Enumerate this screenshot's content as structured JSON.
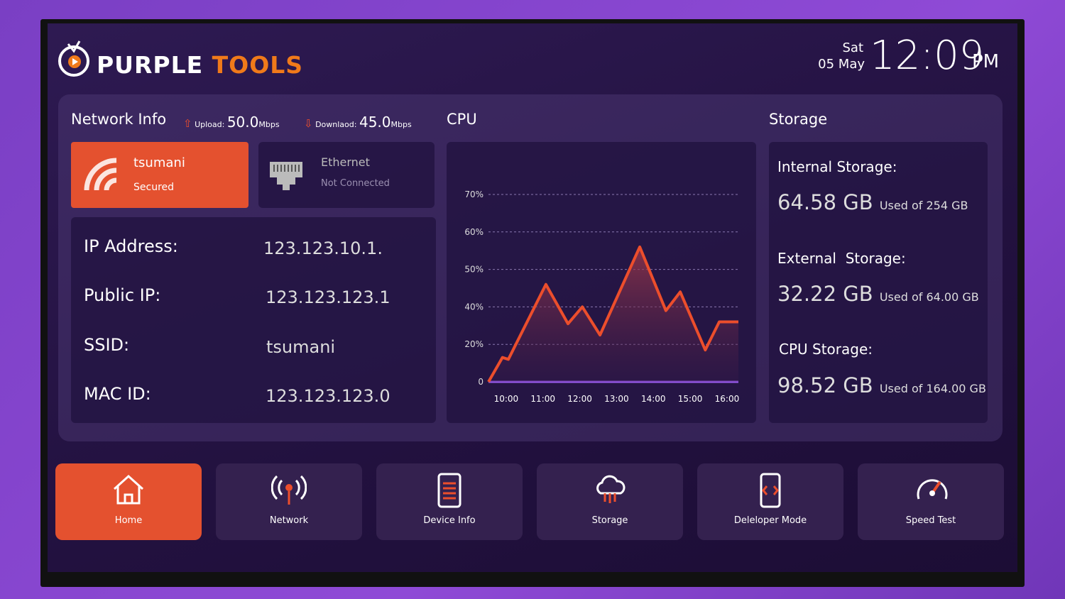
{
  "header": {
    "brand_part1": "PURPLE",
    "brand_part2": "TOOLS",
    "day": "Sat",
    "date": "05 May",
    "time": "12:09",
    "ampm": "PM"
  },
  "network": {
    "title": "Network Info",
    "upload_label": "Upload:",
    "upload_value": "50.0",
    "upload_unit": "Mbps",
    "download_label": "Downlaod:",
    "download_value": "45.0",
    "download_unit": "Mbps",
    "wifi": {
      "name": "tsumani",
      "status": "Secured"
    },
    "ethernet": {
      "name": "Ethernet",
      "status": "Not Connected"
    },
    "details": [
      [
        "IP Address:",
        "123.123.10.1."
      ],
      [
        "Public IP:",
        "123.123.123.1"
      ],
      [
        "SSID:",
        "tsumani"
      ],
      [
        "MAC ID:",
        "123.123.123.0"
      ]
    ]
  },
  "chart_data": {
    "type": "line",
    "title": "CPU",
    "color": "#ec4e2c",
    "x": [
      9.52,
      9.9,
      10.06,
      11.08,
      11.68,
      12.07,
      12.55,
      13.63,
      14.34,
      14.73,
      15.41,
      15.79,
      16.31
    ],
    "values": [
      0,
      13,
      12,
      46,
      31,
      40,
      25,
      56,
      38,
      44,
      17,
      32,
      32
    ],
    "xlim": [
      9.52,
      16.31
    ],
    "xticks": [
      {
        "value": 10,
        "label": "10:00"
      },
      {
        "value": 11,
        "label": "11:00"
      },
      {
        "value": 12,
        "label": "12:00"
      },
      {
        "value": 13,
        "label": "13:00"
      },
      {
        "value": 14,
        "label": "14:00"
      },
      {
        "value": 15,
        "label": "15:00"
      },
      {
        "value": 16,
        "label": "16:00"
      }
    ],
    "ylim": [
      0,
      70
    ],
    "yticks": [
      0,
      {
        "value": 20,
        "label": "20%"
      },
      {
        "value": 40,
        "label": "40%"
      },
      {
        "value": 50,
        "label": "50%"
      },
      {
        "value": 60,
        "label": "60%"
      },
      {
        "value": 70,
        "label": "70%"
      }
    ],
    "grid": true
  },
  "storage": {
    "title": "Storage",
    "items": [
      {
        "label": "Internal Storage:",
        "used": "64.58 GB",
        "total": "Used of 254 GB"
      },
      {
        "label": "External  Storage:",
        "used": "32.22 GB",
        "total": "Used of 64.00 GB"
      },
      {
        "label": "CPU Storage:",
        "used": "98.52 GB",
        "total": "Used of 164.00 GB"
      }
    ]
  },
  "nav": [
    "Home",
    "Network",
    "Device Info",
    "Storage",
    "Deleloper Mode",
    "Speed Test"
  ]
}
